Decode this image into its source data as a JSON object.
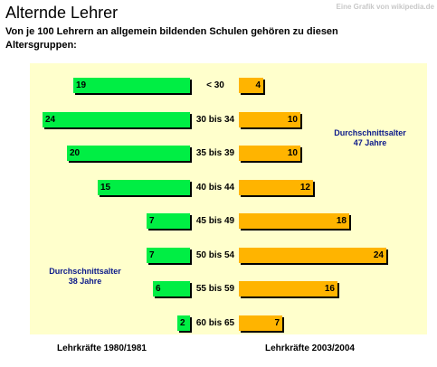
{
  "header": {
    "title": "Alternde Lehrer",
    "credit": "Eine Grafik von wikipedia.de",
    "subtitle": "Von je 100 Lehrern an allgemein bildenden Schulen gehören zu diesen Altersgruppen:"
  },
  "annotations": {
    "left_avg_line1": "Durchschnittsalter",
    "left_avg_line2": "38 Jahre",
    "right_avg_line1": "Durchschnittsalter",
    "right_avg_line2": "47 Jahre"
  },
  "footer": {
    "left": "Lehrkräfte 1980/1981",
    "right": "Lehrkräfte 2003/2004"
  },
  "colors": {
    "panel_bg": "#ffffcc",
    "green": "#00ee44",
    "orange": "#ffb400",
    "annotation": "#0c1a8a"
  },
  "chart_data": {
    "type": "bar",
    "orientation": "horizontal-butterfly",
    "title": "Alternde Lehrer",
    "categories": [
      "< 30",
      "30 bis 34",
      "35 bis 39",
      "40 bis 44",
      "45 bis 49",
      "50 bis 54",
      "55 bis 59",
      "60 bis 65"
    ],
    "series": [
      {
        "name": "Lehrkräfte 1980/1981",
        "values": [
          19,
          24,
          20,
          15,
          7,
          7,
          6,
          2
        ]
      },
      {
        "name": "Lehrkräfte 2003/2004",
        "values": [
          4,
          10,
          10,
          12,
          18,
          24,
          16,
          7
        ]
      }
    ]
  }
}
